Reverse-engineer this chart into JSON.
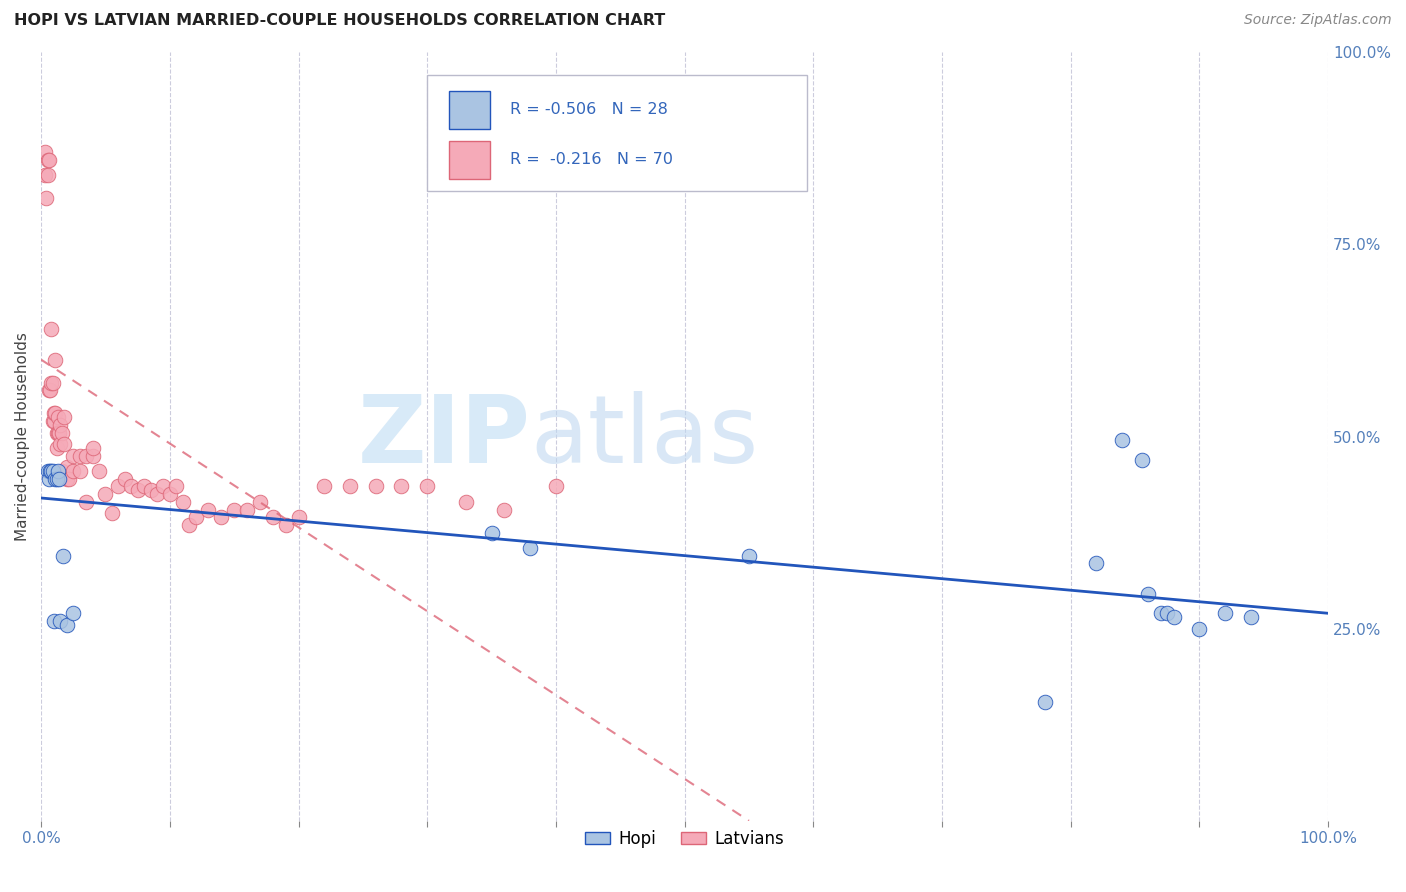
{
  "title": "HOPI VS LATVIAN MARRIED-COUPLE HOUSEHOLDS CORRELATION CHART",
  "source": "Source: ZipAtlas.com",
  "ylabel": "Married-couple Households",
  "xlim": [
    0,
    1
  ],
  "ylim": [
    0,
    1
  ],
  "hopi_color": "#aac4e2",
  "latvian_color": "#f5aab8",
  "hopi_line_color": "#2255bb",
  "latvian_line_color": "#dd6677",
  "hopi_x": [
    0.005,
    0.006,
    0.007,
    0.008,
    0.009,
    0.01,
    0.011,
    0.012,
    0.013,
    0.014,
    0.015,
    0.017,
    0.02,
    0.025,
    0.35,
    0.38,
    0.55,
    0.78,
    0.82,
    0.84,
    0.855,
    0.86,
    0.87,
    0.875,
    0.88,
    0.9,
    0.92,
    0.94
  ],
  "hopi_y": [
    0.455,
    0.445,
    0.455,
    0.455,
    0.455,
    0.26,
    0.445,
    0.445,
    0.455,
    0.445,
    0.26,
    0.345,
    0.255,
    0.27,
    0.375,
    0.355,
    0.345,
    0.155,
    0.335,
    0.495,
    0.47,
    0.295,
    0.27,
    0.27,
    0.265,
    0.25,
    0.27,
    0.265
  ],
  "latvian_x": [
    0.003,
    0.003,
    0.004,
    0.005,
    0.005,
    0.006,
    0.006,
    0.007,
    0.008,
    0.008,
    0.009,
    0.009,
    0.01,
    0.01,
    0.011,
    0.011,
    0.012,
    0.012,
    0.013,
    0.013,
    0.014,
    0.015,
    0.015,
    0.016,
    0.016,
    0.018,
    0.018,
    0.02,
    0.02,
    0.022,
    0.025,
    0.025,
    0.03,
    0.03,
    0.035,
    0.035,
    0.04,
    0.04,
    0.045,
    0.05,
    0.055,
    0.06,
    0.065,
    0.07,
    0.075,
    0.08,
    0.085,
    0.09,
    0.095,
    0.1,
    0.105,
    0.11,
    0.115,
    0.12,
    0.13,
    0.14,
    0.15,
    0.16,
    0.17,
    0.18,
    0.19,
    0.2,
    0.22,
    0.24,
    0.26,
    0.28,
    0.3,
    0.33,
    0.36,
    0.4
  ],
  "latvian_y": [
    0.84,
    0.87,
    0.81,
    0.84,
    0.86,
    0.56,
    0.86,
    0.56,
    0.57,
    0.64,
    0.52,
    0.57,
    0.52,
    0.53,
    0.53,
    0.6,
    0.485,
    0.505,
    0.505,
    0.525,
    0.505,
    0.49,
    0.515,
    0.455,
    0.505,
    0.49,
    0.525,
    0.445,
    0.46,
    0.445,
    0.455,
    0.475,
    0.455,
    0.475,
    0.415,
    0.475,
    0.475,
    0.485,
    0.455,
    0.425,
    0.4,
    0.435,
    0.445,
    0.435,
    0.43,
    0.435,
    0.43,
    0.425,
    0.435,
    0.425,
    0.435,
    0.415,
    0.385,
    0.395,
    0.405,
    0.395,
    0.405,
    0.405,
    0.415,
    0.395,
    0.385,
    0.395,
    0.435,
    0.435,
    0.435,
    0.435,
    0.435,
    0.415,
    0.405,
    0.435
  ],
  "hopi_line_x0": 0.0,
  "hopi_line_y0": 0.42,
  "hopi_line_x1": 1.0,
  "hopi_line_y1": 0.27,
  "latvian_line_x0": 0.0,
  "latvian_line_y0": 0.6,
  "latvian_line_x1": 0.55,
  "latvian_line_y1": 0.0,
  "background_color": "#ffffff",
  "grid_color": "#ccccdd"
}
